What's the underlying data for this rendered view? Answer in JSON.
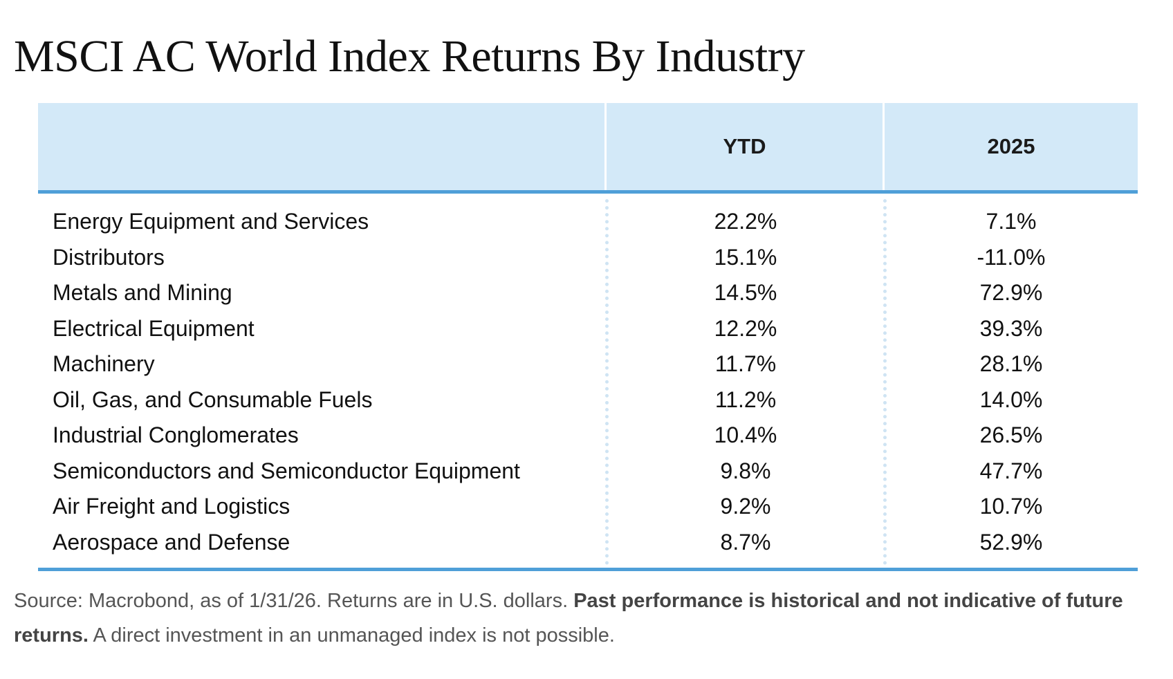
{
  "title": "MSCI AC World Index Returns By Industry",
  "chart_data": {
    "type": "table",
    "title": "MSCI AC World Index Returns By Industry",
    "columns": [
      "",
      "YTD",
      "2025"
    ],
    "rows": [
      {
        "industry": "Energy Equipment and Services",
        "ytd": "22.2%",
        "y2025": "7.1%"
      },
      {
        "industry": "Distributors",
        "ytd": "15.1%",
        "y2025": "-11.0%"
      },
      {
        "industry": "Metals and Mining",
        "ytd": "14.5%",
        "y2025": "72.9%"
      },
      {
        "industry": "Electrical Equipment",
        "ytd": "12.2%",
        "y2025": "39.3%"
      },
      {
        "industry": "Machinery",
        "ytd": "11.7%",
        "y2025": "28.1%"
      },
      {
        "industry": "Oil, Gas, and Consumable Fuels",
        "ytd": "11.2%",
        "y2025": "14.0%"
      },
      {
        "industry": "Industrial Conglomerates",
        "ytd": "10.4%",
        "y2025": "26.5%"
      },
      {
        "industry": "Semiconductors and Semiconductor Equipment",
        "ytd": "9.8%",
        "y2025": "47.7%"
      },
      {
        "industry": "Air Freight and Logistics",
        "ytd": "9.2%",
        "y2025": "10.7%"
      },
      {
        "industry": "Aerospace and Defense",
        "ytd": "8.7%",
        "y2025": "52.9%"
      }
    ]
  },
  "footnote": {
    "source": "Source: Macrobond, as of 1/31/26. Returns are in U.S. dollars.",
    "bold": "Past performance is historical and not indicative of future returns.",
    "rest": "A direct investment in an unmanaged index is not possible."
  },
  "colors": {
    "header_background": "#d3e9f8",
    "rule": "#4f9fd8",
    "divider_dots": "#cfe4f3"
  }
}
